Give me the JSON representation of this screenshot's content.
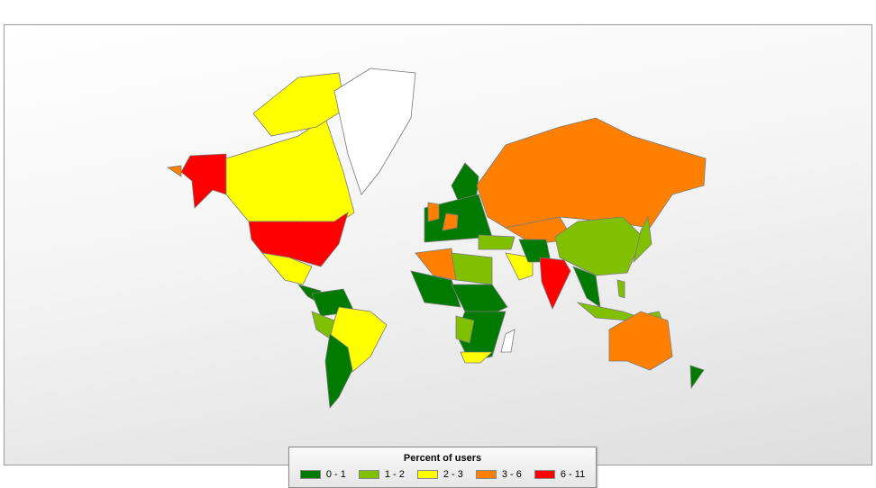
{
  "legend": {
    "title": "Percent of users",
    "items": [
      {
        "label": "0 - 1",
        "color": "#007a00"
      },
      {
        "label": "1 - 2",
        "color": "#80c000"
      },
      {
        "label": "2 - 3",
        "color": "#ffff00"
      },
      {
        "label": "3 - 6",
        "color": "#ff8000"
      },
      {
        "label": "6 - 11",
        "color": "#ff0000"
      }
    ]
  },
  "no_data_color": "#ffffff",
  "region_classes": {
    "alaska": 4,
    "canada": 2,
    "arctic-islands": 2,
    "greenland": -1,
    "usa": 4,
    "mexico": 2,
    "central-america": 0,
    "colombia-venezuela": 0,
    "brazil": 2,
    "peru": 1,
    "chile-argentina": 0,
    "scandinavia": 0,
    "europe": 0,
    "uk": 3,
    "france": 3,
    "russia": 3,
    "kazakhstan": 3,
    "china": 1,
    "turkey": 1,
    "saudi-arabia": 2,
    "iran": 0,
    "india": 4,
    "southeast-asia": 0,
    "philippines": 1,
    "indonesia": 1,
    "japan": 1,
    "north-africa-west": 3,
    "north-africa-east": 1,
    "west-africa": 0,
    "central-africa": 0,
    "east-africa": 0,
    "angola-zambia": 1,
    "south-africa": 2,
    "madagascar": -1,
    "australia": 3,
    "new-zealand": 0,
    "chukotka": 3
  }
}
